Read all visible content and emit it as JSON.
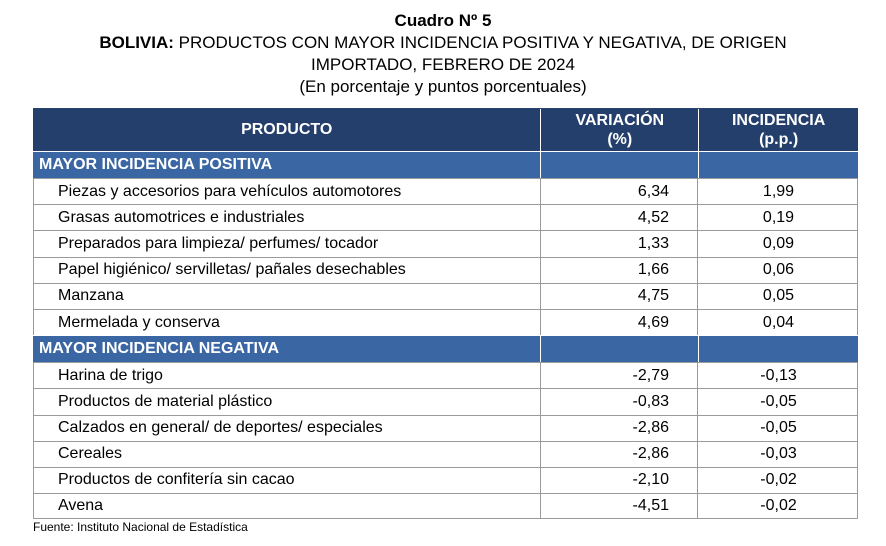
{
  "title": "Cuadro Nº 5",
  "subtitle_bold": "BOLIVIA:",
  "subtitle_line1": " PRODUCTOS CON MAYOR INCIDENCIA POSITIVA Y NEGATIVA, DE ORIGEN",
  "subtitle_line2": "IMPORTADO, FEBRERO DE 2024",
  "units": "(En porcentaje y puntos porcentuales)",
  "header": {
    "product": "PRODUCTO",
    "variation_l1": "VARIACIÓN",
    "variation_l2": "(%)",
    "incidence_l1": "INCIDENCIA",
    "incidence_l2": "(p.p.)"
  },
  "sections": [
    {
      "label": "MAYOR INCIDENCIA POSITIVA",
      "rows": [
        {
          "product": "Piezas y accesorios para vehículos automotores",
          "variation": "6,34",
          "incidence": "1,99"
        },
        {
          "product": "Grasas automotrices e industriales",
          "variation": "4,52",
          "incidence": "0,19"
        },
        {
          "product": "Preparados para limpieza/ perfumes/ tocador",
          "variation": "1,33",
          "incidence": "0,09"
        },
        {
          "product": "Papel higiénico/ servilletas/ pañales desechables",
          "variation": "1,66",
          "incidence": "0,06"
        },
        {
          "product": "Manzana",
          "variation": "4,75",
          "incidence": "0,05"
        },
        {
          "product": "Mermelada y conserva",
          "variation": "4,69",
          "incidence": "0,04"
        }
      ]
    },
    {
      "label": "MAYOR INCIDENCIA NEGATIVA",
      "rows": [
        {
          "product": "Harina de trigo",
          "variation": "-2,79",
          "incidence": "-0,13"
        },
        {
          "product": "Productos de material plástico",
          "variation": "-0,83",
          "incidence": "-0,05"
        },
        {
          "product": "Calzados en general/ de deportes/ especiales",
          "variation": "-2,86",
          "incidence": "-0,05"
        },
        {
          "product": "Cereales",
          "variation": "-2,86",
          "incidence": "-0,03"
        },
        {
          "product": "Productos de confitería sin cacao",
          "variation": "-2,10",
          "incidence": "-0,02"
        },
        {
          "product": "Avena",
          "variation": "-4,51",
          "incidence": "-0,02"
        }
      ]
    }
  ],
  "source": "Fuente: Instituto Nacional de Estadística",
  "colors": {
    "header_bg": "#243f6b",
    "section_bg": "#3a66a3"
  }
}
